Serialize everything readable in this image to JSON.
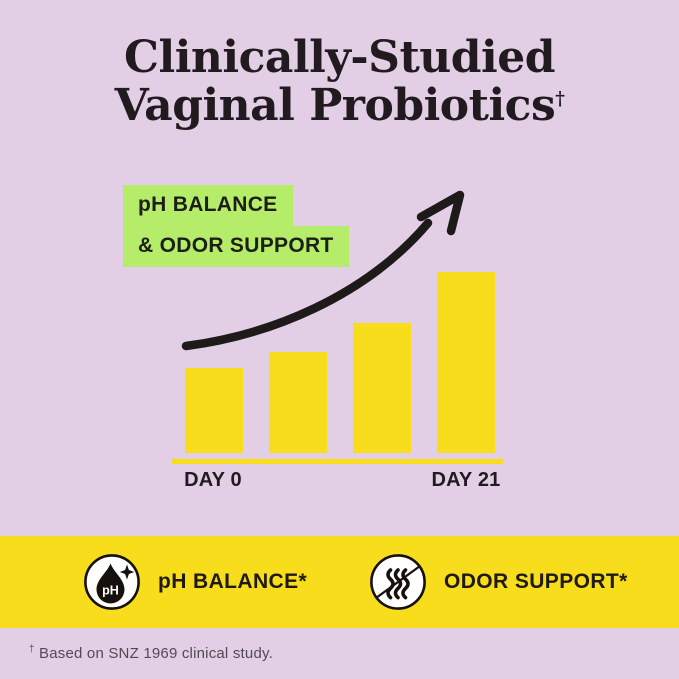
{
  "colors": {
    "background": "#E2CEE5",
    "accent_yellow": "#F8DD1C",
    "accent_green": "#B5EC69",
    "ink": "#211B1F"
  },
  "title": {
    "line1": "Clinically-Studied",
    "line2": "Vaginal Probiotics",
    "dagger": "†"
  },
  "chart": {
    "highlight_line1": "pH BALANCE",
    "highlight_line2": "& ODOR SUPPORT",
    "x_label_start": "DAY 0",
    "x_label_end": "DAY 21",
    "arrow": "upward-trend-arrow"
  },
  "chart_data": {
    "type": "bar",
    "categories": [
      "DAY 0",
      "",
      "",
      "DAY 21"
    ],
    "values": [
      47,
      56,
      72,
      100
    ],
    "title": "pH BALANCE & ODOR SUPPORT",
    "xlabel": "",
    "ylabel": "",
    "ylim": [
      0,
      100
    ],
    "grid": false,
    "legend": false,
    "bar_color": "#F8DD1C",
    "annotations": [
      "hand-drawn upward trend arrow over bars"
    ],
    "notes": "No numeric axis shown; values are relative bar heights as % of tallest bar. Only first and last bars are labeled."
  },
  "banner": {
    "items": [
      {
        "icon": "ph-droplet-icon",
        "icon_text": "pH",
        "label": "pH BALANCE*"
      },
      {
        "icon": "no-odor-icon",
        "label": "ODOR SUPPORT*"
      }
    ]
  },
  "footnote": {
    "dagger": "†",
    "text": "Based on SNZ 1969 clinical study."
  }
}
